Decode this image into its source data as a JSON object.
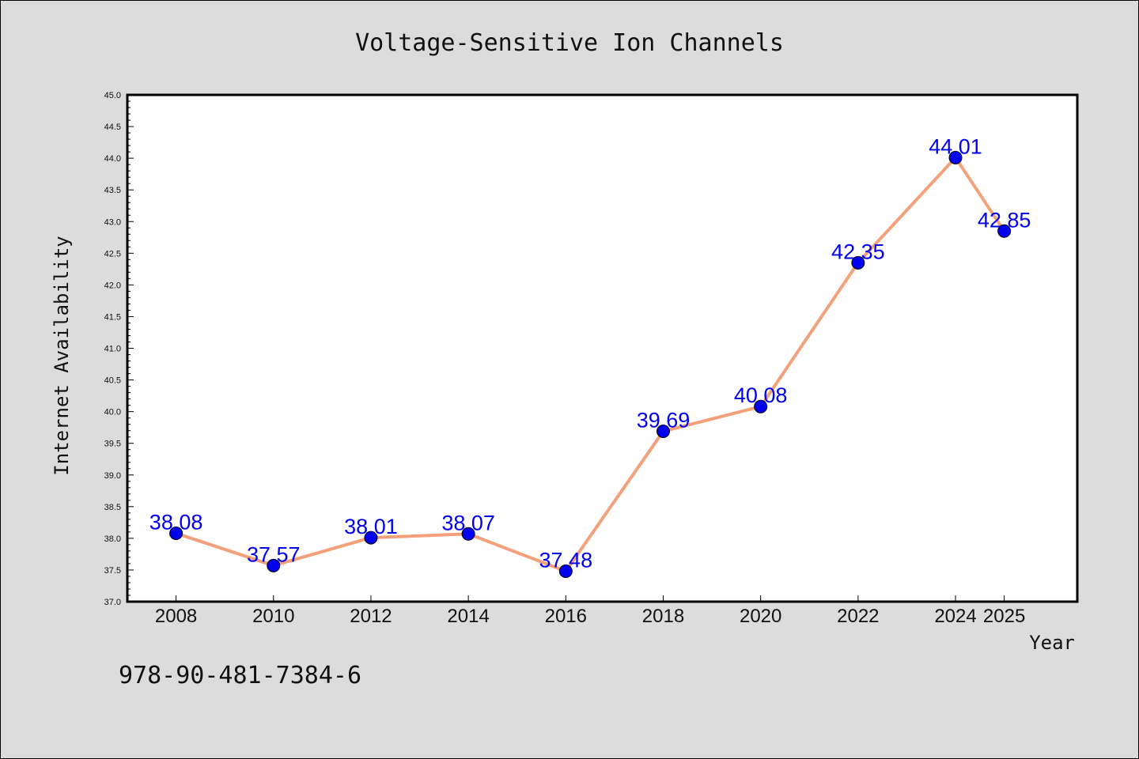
{
  "chart_data": {
    "type": "line",
    "title": "Voltage-Sensitive Ion Channels",
    "xlabel": "Year",
    "ylabel": "Internet Availability",
    "x": [
      "2008",
      "2010",
      "2012",
      "2014",
      "2016",
      "2018",
      "2020",
      "2022",
      "2024",
      "2025"
    ],
    "series": [
      {
        "values": [
          38.08,
          37.57,
          38.01,
          38.07,
          37.48,
          39.69,
          40.08,
          42.35,
          44.01,
          42.85
        ]
      }
    ],
    "data_labels": [
      "38.08",
      "37.57",
      "38.01",
      "38.07",
      "37.48",
      "39.69",
      "40.08",
      "42.35",
      "44.01",
      "42.85"
    ],
    "ylim": [
      37.0,
      45.0
    ],
    "yticks": [
      "37.0",
      "37.5",
      "38.0",
      "38.5",
      "39.0",
      "39.5",
      "40.0",
      "40.5",
      "41.0",
      "41.5",
      "42.0",
      "42.5",
      "43.0",
      "43.5",
      "44.0",
      "44.5",
      "45.0"
    ],
    "grid": false,
    "legend": "none",
    "colors": {
      "line": "#f4a07a",
      "marker": "#0000ee",
      "data_label": "#0000ee",
      "background": "#dcdcdc",
      "plot_area": "#ffffff"
    }
  },
  "footer": {
    "isbn": "978-90-481-7384-6"
  }
}
